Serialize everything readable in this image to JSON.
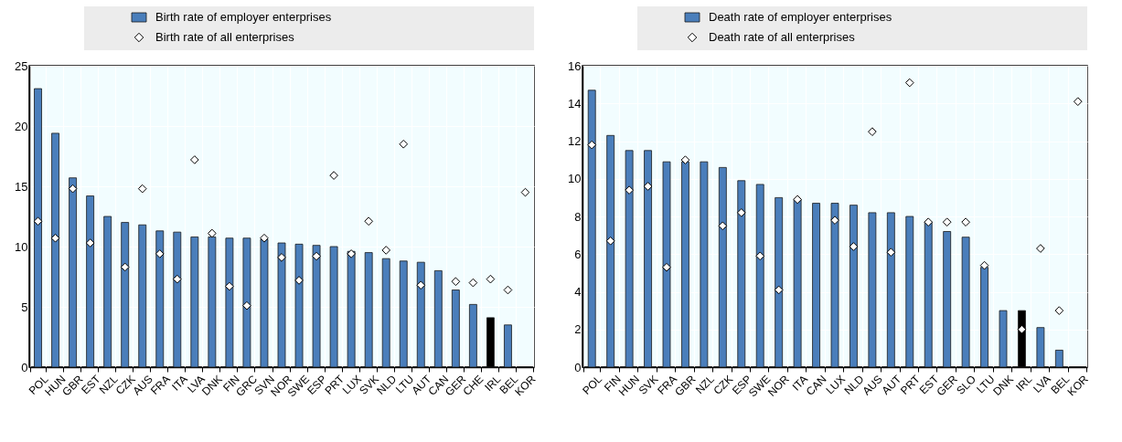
{
  "chart_data": [
    {
      "type": "bar",
      "categories": [
        "POL",
        "HUN",
        "GBR",
        "EST",
        "NZL",
        "CZK",
        "AUS",
        "FRA",
        "ITA",
        "LVA",
        "DNK",
        "FIN",
        "GRC",
        "SVN",
        "NOR",
        "SWE",
        "ESP",
        "PRT",
        "LUX",
        "SVK",
        "NLD",
        "LTU",
        "AUT",
        "CAN",
        "GER",
        "CHE",
        "IRL",
        "BEL",
        "KOR"
      ],
      "ylim": [
        0,
        25
      ],
      "yticks": [
        0,
        5,
        10,
        15,
        20,
        25
      ],
      "grid": true,
      "legend": "top",
      "marker": "diamond",
      "series": [
        {
          "name": "Birth rate of employer enterprises",
          "color": "#4a7ebb",
          "colors": [
            "#4a7ebb",
            "#4a7ebb",
            "#4a7ebb",
            "#4a7ebb",
            "#4a7ebb",
            "#4a7ebb",
            "#4a7ebb",
            "#4a7ebb",
            "#4a7ebb",
            "#4a7ebb",
            "#4a7ebb",
            "#4a7ebb",
            "#4a7ebb",
            "#4a7ebb",
            "#4a7ebb",
            "#4a7ebb",
            "#4a7ebb",
            "#4a7ebb",
            "#4a7ebb",
            "#4a7ebb",
            "#4a7ebb",
            "#4a7ebb",
            "#4a7ebb",
            "#4a7ebb",
            "#4a7ebb",
            "#4a7ebb",
            "#000000",
            "#4a7ebb",
            "#4a7ebb"
          ],
          "values": [
            23.1,
            19.4,
            15.7,
            14.2,
            12.5,
            12.0,
            11.8,
            11.3,
            11.2,
            10.8,
            10.8,
            10.7,
            10.7,
            10.6,
            10.3,
            10.2,
            10.1,
            10.0,
            9.6,
            9.5,
            9.0,
            8.8,
            8.7,
            8.0,
            6.4,
            5.2,
            4.1,
            3.5,
            null
          ]
        },
        {
          "name": "Birth rate of all enterprises",
          "type": "scatter",
          "color": "#ffffff",
          "values": [
            12.1,
            10.7,
            14.8,
            10.3,
            null,
            8.3,
            14.8,
            9.4,
            7.3,
            17.2,
            11.1,
            6.7,
            5.1,
            10.7,
            9.1,
            7.2,
            9.2,
            15.9,
            9.4,
            12.1,
            9.7,
            18.5,
            6.8,
            null,
            7.1,
            7.0,
            7.3,
            6.4,
            14.5
          ]
        }
      ]
    },
    {
      "type": "bar",
      "categories": [
        "POL",
        "FIN",
        "HUN",
        "SVK",
        "FRA",
        "GBR",
        "NZL",
        "CZK",
        "ESP",
        "SWE",
        "NOR",
        "ITA",
        "CAN",
        "LUX",
        "NLD",
        "AUS",
        "AUT",
        "PRT",
        "EST",
        "GER",
        "SLO",
        "LTU",
        "DNK",
        "IRL",
        "LVA",
        "BEL",
        "KOR"
      ],
      "ylim": [
        0,
        16
      ],
      "yticks": [
        0,
        2,
        4,
        6,
        8,
        10,
        12,
        14,
        16
      ],
      "grid": true,
      "legend": "top",
      "marker": "diamond",
      "series": [
        {
          "name": "Death rate of employer enterprises",
          "color": "#4a7ebb",
          "colors": [
            "#4a7ebb",
            "#4a7ebb",
            "#4a7ebb",
            "#4a7ebb",
            "#4a7ebb",
            "#4a7ebb",
            "#4a7ebb",
            "#4a7ebb",
            "#4a7ebb",
            "#4a7ebb",
            "#4a7ebb",
            "#4a7ebb",
            "#4a7ebb",
            "#4a7ebb",
            "#4a7ebb",
            "#4a7ebb",
            "#4a7ebb",
            "#4a7ebb",
            "#4a7ebb",
            "#4a7ebb",
            "#4a7ebb",
            "#4a7ebb",
            "#4a7ebb",
            "#000000",
            "#4a7ebb",
            "#4a7ebb",
            "#4a7ebb"
          ],
          "values": [
            14.7,
            12.3,
            11.5,
            11.5,
            10.9,
            10.9,
            10.9,
            10.6,
            9.9,
            9.7,
            9.0,
            8.9,
            8.7,
            8.7,
            8.6,
            8.2,
            8.2,
            8.0,
            7.7,
            7.2,
            6.9,
            5.3,
            3.0,
            3.0,
            2.1,
            0.9,
            null
          ]
        },
        {
          "name": "Death rate of all enterprises",
          "type": "scatter",
          "color": "#ffffff",
          "values": [
            11.8,
            6.7,
            9.4,
            9.6,
            5.3,
            11.0,
            null,
            7.5,
            8.2,
            5.9,
            4.1,
            8.9,
            null,
            7.8,
            6.4,
            12.5,
            6.1,
            15.1,
            7.7,
            7.7,
            7.7,
            5.4,
            null,
            2.0,
            6.3,
            3.0,
            14.1
          ]
        }
      ]
    }
  ]
}
